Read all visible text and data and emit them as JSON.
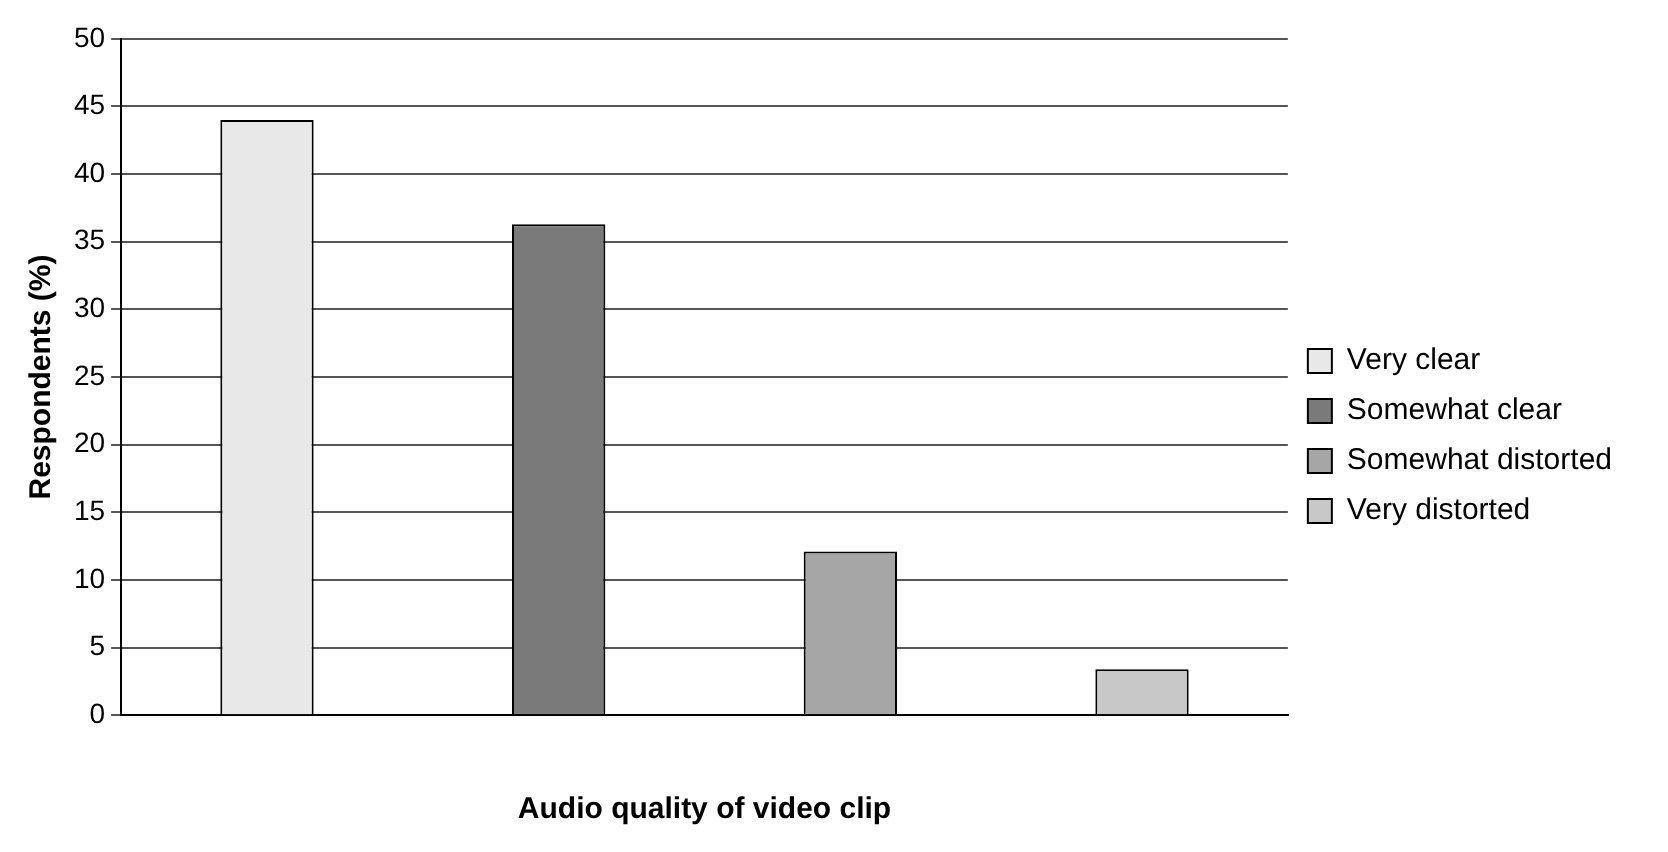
{
  "chart_data": {
    "type": "bar",
    "xlabel": "Audio quality of video clip",
    "ylabel": "Respondents (%)",
    "categories": [
      null,
      null,
      null,
      null
    ],
    "series": [
      {
        "name": "Very clear",
        "color": "#e8e8e8",
        "values": [
          44,
          null,
          null,
          null
        ]
      },
      {
        "name": "Somewhat clear",
        "color": "#7a7a7a",
        "values": [
          null,
          36.3,
          null,
          null
        ]
      },
      {
        "name": "Somewhat distorted",
        "color": "#a6a6a6",
        "values": [
          null,
          null,
          12.1,
          null
        ]
      },
      {
        "name": "Very distorted",
        "color": "#c8c8c8",
        "values": [
          null,
          null,
          null,
          3.4
        ]
      }
    ],
    "ylim": [
      0,
      50
    ],
    "yticks": [
      0,
      5,
      10,
      15,
      20,
      25,
      30,
      35,
      40,
      45,
      50
    ],
    "grid": "y",
    "legend": "right"
  }
}
